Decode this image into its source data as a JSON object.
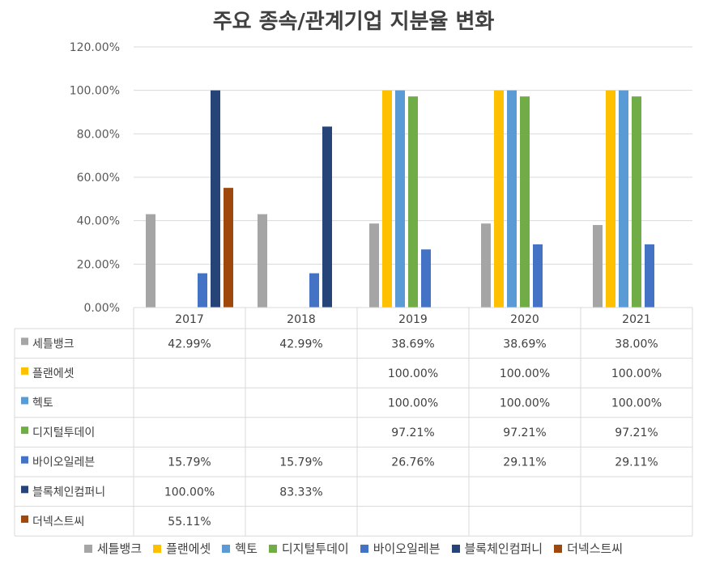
{
  "title": "주요 종속/관계기업 지분율 변화",
  "chart_data": {
    "type": "bar",
    "title": "주요 종속/관계기업 지분율 변화",
    "categories": [
      "2017",
      "2018",
      "2019",
      "2020",
      "2021"
    ],
    "ylim": [
      0,
      120
    ],
    "yticks": [
      "0.00%",
      "20.00%",
      "40.00%",
      "60.00%",
      "80.00%",
      "100.00%",
      "120.00%"
    ],
    "grid": true,
    "legend_position": "bottom",
    "series": [
      {
        "name": "세틀뱅크",
        "color": "#a5a5a5",
        "values": [
          42.99,
          42.99,
          38.69,
          38.69,
          38.0
        ],
        "labels": [
          "42.99%",
          "42.99%",
          "38.69%",
          "38.69%",
          "38.00%"
        ]
      },
      {
        "name": "플랜에셋",
        "color": "#ffc000",
        "values": [
          null,
          null,
          100,
          100,
          100
        ],
        "labels": [
          "",
          "",
          "100.00%",
          "100.00%",
          "100.00%"
        ]
      },
      {
        "name": "헥토",
        "color": "#5b9bd5",
        "values": [
          null,
          null,
          100,
          100,
          100
        ],
        "labels": [
          "",
          "",
          "100.00%",
          "100.00%",
          "100.00%"
        ]
      },
      {
        "name": "디지털투데이",
        "color": "#70ad47",
        "values": [
          null,
          null,
          97.21,
          97.21,
          97.21
        ],
        "labels": [
          "",
          "",
          "97.21%",
          "97.21%",
          "97.21%"
        ]
      },
      {
        "name": "바이오일레븐",
        "color": "#4472c4",
        "values": [
          15.79,
          15.79,
          26.76,
          29.11,
          29.11
        ],
        "labels": [
          "15.79%",
          "15.79%",
          "26.76%",
          "29.11%",
          "29.11%"
        ]
      },
      {
        "name": "블록체인컴퍼니",
        "color": "#264478",
        "values": [
          100,
          83.33,
          null,
          null,
          null
        ],
        "labels": [
          "100.00%",
          "83.33%",
          "",
          "",
          ""
        ]
      },
      {
        "name": "더넥스트씨",
        "color": "#9e480e",
        "values": [
          55.11,
          null,
          null,
          null,
          null
        ],
        "labels": [
          "55.11%",
          "",
          "",
          "",
          ""
        ]
      }
    ]
  }
}
